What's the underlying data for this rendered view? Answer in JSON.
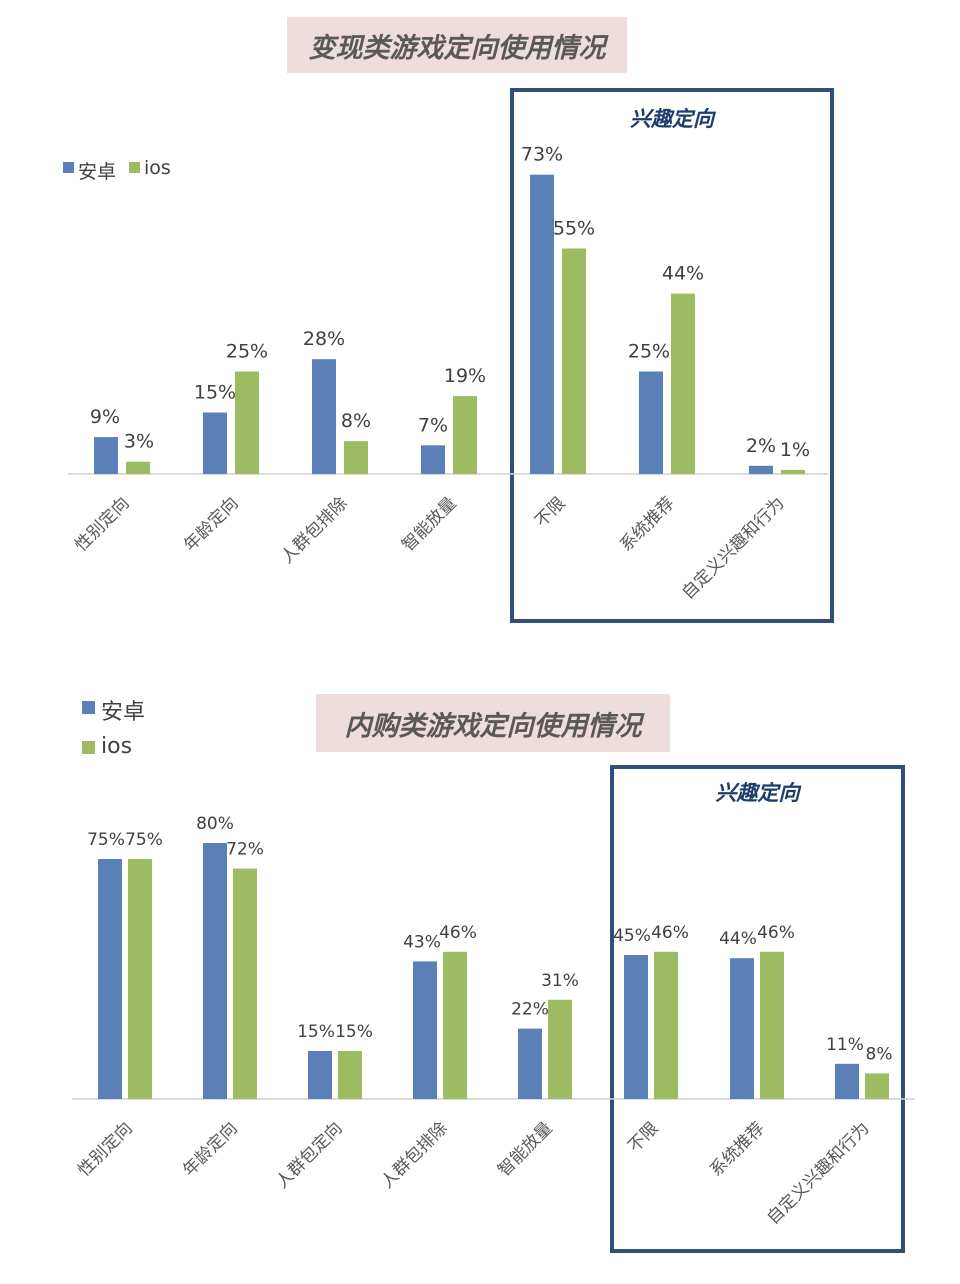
{
  "colors": {
    "android": "#5b80b8",
    "ios": "#9dbb61",
    "box": "#2f4e78",
    "title_bg": "#efdcdc"
  },
  "chart1": {
    "title": "变现类游戏定向使用情况",
    "legend": [
      "安卓",
      "ios"
    ],
    "interest_label": "兴趣定向"
  },
  "chart2": {
    "title": "内购类游戏定向使用情况",
    "legend": [
      "安卓",
      "ios"
    ],
    "interest_label": "兴趣定向"
  },
  "chart_data": [
    {
      "type": "bar",
      "title": "变现类游戏定向使用情况",
      "categories": [
        "性别定向",
        "年龄定向",
        "人群包排除",
        "智能放量",
        "不限",
        "系统推荐",
        "自定义兴趣和行为"
      ],
      "series": [
        {
          "name": "安卓",
          "values": [
            9,
            15,
            28,
            7,
            73,
            25,
            2
          ],
          "labels": [
            "9%",
            "15%",
            "28%",
            "7%",
            "73%",
            "25%",
            "2%"
          ]
        },
        {
          "name": "ios",
          "values": [
            3,
            25,
            8,
            19,
            55,
            44,
            1
          ],
          "labels": [
            "3%",
            "25%",
            "8%",
            "19%",
            "55%",
            "44%",
            "1%"
          ]
        }
      ],
      "unit": "%",
      "legend_position": "top-left",
      "grid": false
    },
    {
      "type": "bar",
      "title": "内购类游戏定向使用情况",
      "categories": [
        "性别定向",
        "年龄定向",
        "人群包定向",
        "人群包排除",
        "智能放量",
        "不限",
        "系统推荐",
        "自定义兴趣和行为"
      ],
      "series": [
        {
          "name": "安卓",
          "values": [
            75,
            80,
            15,
            43,
            22,
            45,
            44,
            11
          ],
          "labels": [
            "75%",
            "80%",
            "15%",
            "43%",
            "22%",
            "45%",
            "44%",
            "11%"
          ]
        },
        {
          "name": "ios",
          "values": [
            75,
            72,
            15,
            46,
            31,
            46,
            46,
            8
          ],
          "labels": [
            "75%",
            "72%",
            "15%",
            "46%",
            "31%",
            "46%",
            "46%",
            "8%"
          ]
        }
      ],
      "unit": "%",
      "legend_position": "top-left",
      "grid": false
    }
  ]
}
